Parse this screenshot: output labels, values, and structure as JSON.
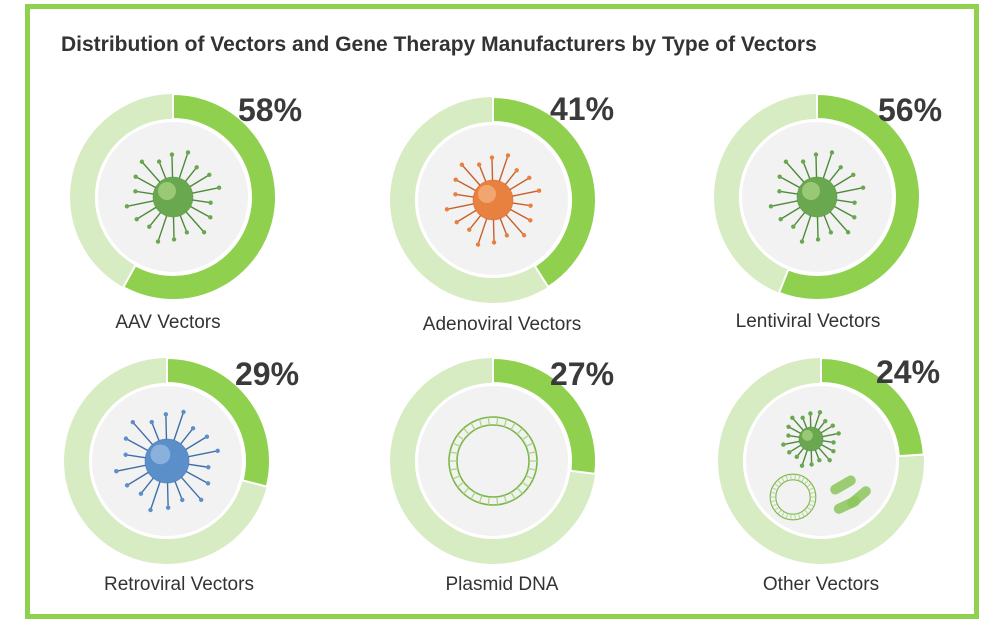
{
  "title": "Distribution of Vectors and Gene Therapy Manufacturers by Type of Vectors",
  "colors": {
    "frame": "#8fd04e",
    "ring_filled": "#8fd04e",
    "ring_track": "#d8ecc4",
    "inner_disc": "#f2f2f2"
  },
  "chart_data": [
    {
      "type": "pie",
      "title": "",
      "categories": [
        "AAV Vectors"
      ],
      "values": [
        58
      ],
      "value_label": "58%",
      "icon": "green-virus-icon"
    },
    {
      "type": "pie",
      "title": "",
      "categories": [
        "Adenoviral Vectors"
      ],
      "values": [
        41
      ],
      "value_label": "41%",
      "icon": "orange-virus-icon"
    },
    {
      "type": "pie",
      "title": "",
      "categories": [
        "Lentiviral Vectors"
      ],
      "values": [
        56
      ],
      "value_label": "56%",
      "icon": "green-virus-icon"
    },
    {
      "type": "pie",
      "title": "",
      "categories": [
        "Retroviral Vectors"
      ],
      "values": [
        29
      ],
      "value_label": "29%",
      "icon": "blue-virus-icon"
    },
    {
      "type": "pie",
      "title": "",
      "categories": [
        "Plasmid DNA"
      ],
      "values": [
        27
      ],
      "value_label": "27%",
      "icon": "plasmid-dna-icon"
    },
    {
      "type": "pie",
      "title": "",
      "categories": [
        "Other Vectors"
      ],
      "values": [
        24
      ],
      "value_label": "24%",
      "icon": "virus-plasmid-bacteria-icon"
    }
  ]
}
